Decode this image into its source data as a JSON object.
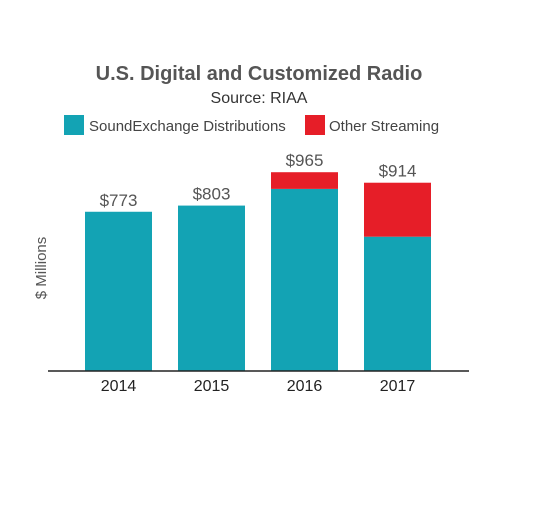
{
  "chart_data": {
    "type": "bar",
    "stacked": true,
    "title": "U.S. Digital and Customized Radio",
    "subtitle": "Source: RIAA",
    "ylabel": "$ Millions",
    "xlabel": "",
    "categories": [
      "2014",
      "2015",
      "2016",
      "2017"
    ],
    "series": [
      {
        "name": "SoundExchange Distributions",
        "color": "#13a3b4",
        "values": [
          773,
          803,
          884,
          652
        ]
      },
      {
        "name": "Other Streaming",
        "color": "#e61e28",
        "values": [
          0,
          0,
          81,
          262
        ]
      }
    ],
    "totals": [
      773,
      803,
      965,
      914
    ],
    "total_labels": [
      "$773",
      "$803",
      "$965",
      "$914"
    ],
    "ylim": [
      0,
      1000
    ],
    "grid": false,
    "legend_position": "top-left",
    "axis_color": "#222222"
  }
}
